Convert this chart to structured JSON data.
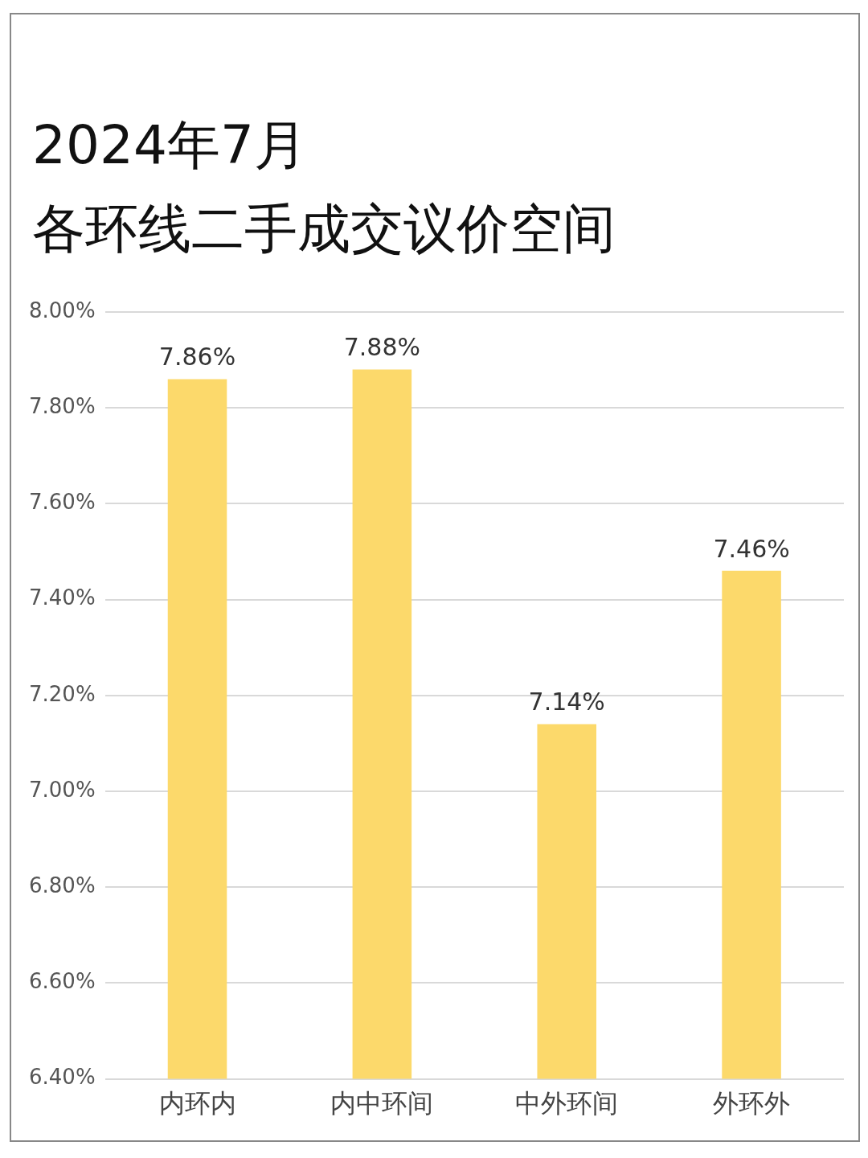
{
  "chart_data": {
    "type": "bar",
    "title": "2024年7月",
    "subtitle": "各环线二手成交议价空间",
    "categories": [
      "内环内",
      "内中环间",
      "中外环间",
      "外环外"
    ],
    "values": [
      7.86,
      7.88,
      7.14,
      7.46
    ],
    "value_labels": [
      "7.86%",
      "7.88%",
      "7.14%",
      "7.46%"
    ],
    "color": "#fcd96b",
    "ylim": [
      6.4,
      8.0
    ],
    "yticks": [
      {
        "value": 6.4,
        "label": "6.40%"
      },
      {
        "value": 6.6,
        "label": "6.60%"
      },
      {
        "value": 6.8,
        "label": "6.80%"
      },
      {
        "value": 7.0,
        "label": "7.00%"
      },
      {
        "value": 7.2,
        "label": "7.20%"
      },
      {
        "value": 7.4,
        "label": "7.40%"
      },
      {
        "value": 7.6,
        "label": "7.60%"
      },
      {
        "value": 7.8,
        "label": "7.80%"
      },
      {
        "value": 8.0,
        "label": "8.00%"
      }
    ],
    "grid": "y"
  }
}
